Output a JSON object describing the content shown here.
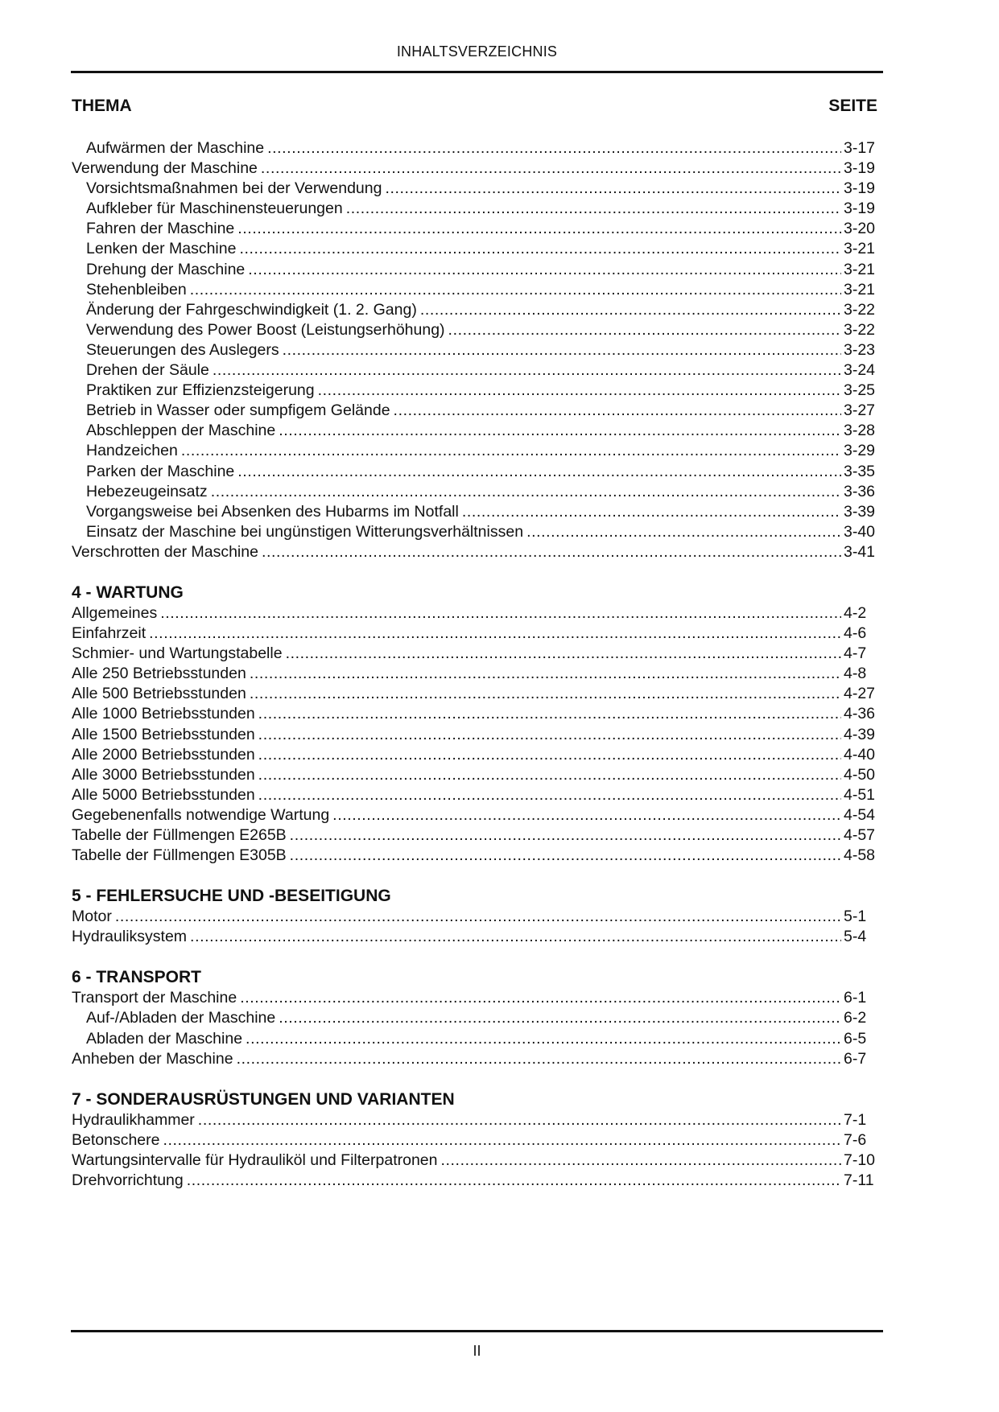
{
  "header": {
    "title": "INHALTSVERZEICHNIS"
  },
  "columns": {
    "topic": "THEMA",
    "page": "SEITE"
  },
  "sections": [
    {
      "title": "",
      "entries": [
        {
          "label": "Aufwärmen der Maschine",
          "page": "3-17",
          "indent": true
        },
        {
          "label": "Verwendung der Maschine",
          "page": "3-19",
          "indent": false
        },
        {
          "label": "Vorsichtsmaßnahmen bei der Verwendung",
          "page": "3-19",
          "indent": true
        },
        {
          "label": "Aufkleber für Maschinensteuerungen",
          "page": "3-19",
          "indent": true
        },
        {
          "label": "Fahren der Maschine",
          "page": "3-20",
          "indent": true
        },
        {
          "label": "Lenken der Maschine",
          "page": "3-21",
          "indent": true
        },
        {
          "label": "Drehung der Maschine",
          "page": "3-21",
          "indent": true
        },
        {
          "label": "Stehenbleiben",
          "page": "3-21",
          "indent": true
        },
        {
          "label": "Änderung der Fahrgeschwindigkeit (1. 2. Gang)",
          "page": "3-22",
          "indent": true
        },
        {
          "label": "Verwendung des Power Boost (Leistungserhöhung)",
          "page": "3-22",
          "indent": true
        },
        {
          "label": "Steuerungen des Auslegers",
          "page": "3-23",
          "indent": true
        },
        {
          "label": "Drehen der Säule",
          "page": "3-24",
          "indent": true
        },
        {
          "label": "Praktiken zur Effizienzsteigerung",
          "page": "3-25",
          "indent": true
        },
        {
          "label": "Betrieb in Wasser oder sumpfigem Gelände",
          "page": "3-27",
          "indent": true
        },
        {
          "label": "Abschleppen der Maschine",
          "page": "3-28",
          "indent": true
        },
        {
          "label": "Handzeichen",
          "page": "3-29",
          "indent": true
        },
        {
          "label": "Parken der Maschine",
          "page": "3-35",
          "indent": true
        },
        {
          "label": "Hebezeugeinsatz",
          "page": "3-36",
          "indent": true
        },
        {
          "label": "Vorgangsweise bei Absenken des Hubarms im Notfall",
          "page": "3-39",
          "indent": true
        },
        {
          "label": "Einsatz der Maschine bei ungünstigen Witterungsverhältnissen",
          "page": "3-40",
          "indent": true
        },
        {
          "label": "Verschrotten der Maschine",
          "page": "3-41",
          "indent": false
        }
      ]
    },
    {
      "title": "4 - WARTUNG",
      "entries": [
        {
          "label": "Allgemeines",
          "page": "4-2",
          "indent": false
        },
        {
          "label": "Einfahrzeit",
          "page": "4-6",
          "indent": false
        },
        {
          "label": "Schmier- und Wartungstabelle",
          "page": "4-7",
          "indent": false
        },
        {
          "label": "Alle 250 Betriebsstunden",
          "page": "4-8",
          "indent": false
        },
        {
          "label": "Alle 500 Betriebsstunden",
          "page": "4-27",
          "indent": false
        },
        {
          "label": "Alle 1000 Betriebsstunden",
          "page": "4-36",
          "indent": false
        },
        {
          "label": "Alle 1500 Betriebsstunden",
          "page": "4-39",
          "indent": false
        },
        {
          "label": "Alle 2000 Betriebsstunden",
          "page": "4-40",
          "indent": false
        },
        {
          "label": "Alle 3000 Betriebsstunden",
          "page": "4-50",
          "indent": false
        },
        {
          "label": "Alle 5000 Betriebsstunden",
          "page": "4-51",
          "indent": false
        },
        {
          "label": "Gegebenenfalls notwendige Wartung",
          "page": "4-54",
          "indent": false
        },
        {
          "label": "Tabelle der Füllmengen E265B",
          "page": "4-57",
          "indent": false
        },
        {
          "label": "Tabelle der Füllmengen E305B",
          "page": "4-58",
          "indent": false
        }
      ]
    },
    {
      "title": "5 - FEHLERSUCHE UND -BESEITIGUNG",
      "entries": [
        {
          "label": "Motor",
          "page": "5-1",
          "indent": false
        },
        {
          "label": "Hydrauliksystem",
          "page": "5-4",
          "indent": false
        }
      ]
    },
    {
      "title": "6 - TRANSPORT",
      "entries": [
        {
          "label": "Transport der Maschine",
          "page": "6-1",
          "indent": false
        },
        {
          "label": "Auf-/Abladen der Maschine",
          "page": "6-2",
          "indent": true
        },
        {
          "label": "Abladen der Maschine",
          "page": "6-5",
          "indent": true
        },
        {
          "label": "Anheben der Maschine",
          "page": "6-7",
          "indent": false
        }
      ]
    },
    {
      "title": "7 - SONDERAUSRÜSTUNGEN UND VARIANTEN",
      "entries": [
        {
          "label": "Hydraulikhammer",
          "page": "7-1",
          "indent": false
        },
        {
          "label": "Betonschere",
          "page": "7-6",
          "indent": false
        },
        {
          "label": "Wartungsintervalle für Hydrauliköl und Filterpatronen",
          "page": "7-10",
          "indent": false
        },
        {
          "label": "Drehvorrichtung",
          "page": "7-11",
          "indent": false
        }
      ]
    }
  ],
  "footer": {
    "page_number": "II"
  }
}
